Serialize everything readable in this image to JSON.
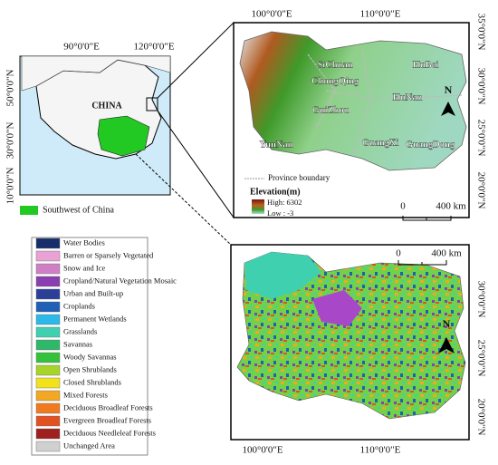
{
  "inset_map": {
    "lon_labels": [
      "90°0'0\"E",
      "120°0'0\"E"
    ],
    "lat_labels": [
      "50°0'0\"N",
      "30°0'0\"N",
      "10°0'0\"N"
    ],
    "country_label": "CHINA",
    "legend_label": "Southwest of China",
    "region_color": "#22c922"
  },
  "elevation_map": {
    "lon_labels": [
      "100°0'0\"E",
      "110°0'0\"E"
    ],
    "lat_labels": [
      "35°0'0\"N",
      "30°0'0\"N",
      "25°0'0\"N",
      "20°0'0\"N"
    ],
    "provinces": [
      "SiChuan",
      "ChongQing",
      "HuBei",
      "HuNan",
      "GuiZhou",
      "YunNan",
      "GuangXi",
      "GuangDong"
    ],
    "boundary_legend": "Province boundary",
    "elevation_title": "Elevation(m)",
    "high_label": "High: 6302",
    "low_label": "Low : -3",
    "scale_labels": [
      "0",
      "400 km"
    ],
    "north_label": "N"
  },
  "land_cover_map": {
    "lon_labels": [
      "100°0'0\"E",
      "110°0'0\"E"
    ],
    "lat_labels": [
      "30°0'0\"N",
      "25°0'0\"N",
      "20°0'0\"N"
    ],
    "scale_labels": [
      "0",
      "400 km"
    ],
    "north_label": "N"
  },
  "land_cover_legend": [
    {
      "label": "Water Bodies",
      "color": "#172e6a"
    },
    {
      "label": "Barren or Sparsely Vegetated",
      "color": "#e8a2d4"
    },
    {
      "label": "Snow and Ice",
      "color": "#d07fc6"
    },
    {
      "label": "Cropland/Natural Vegetation Mosaic",
      "color": "#8a3fb0"
    },
    {
      "label": "Urban and Built-up",
      "color": "#2b3f98"
    },
    {
      "label": "Croplands",
      "color": "#1f60b5"
    },
    {
      "label": "Permanent Wetlands",
      "color": "#2cb9e8"
    },
    {
      "label": "Grasslands",
      "color": "#3fd0b0"
    },
    {
      "label": "Savannas",
      "color": "#2fb86a"
    },
    {
      "label": "Woody Savannas",
      "color": "#34c23c"
    },
    {
      "label": "Open Shrublands",
      "color": "#a8d42a"
    },
    {
      "label": "Closed Shrublands",
      "color": "#f2e21e"
    },
    {
      "label": "Mixed Forests",
      "color": "#f2a820"
    },
    {
      "label": "Deciduous Broadleaf Forests",
      "color": "#f07a20"
    },
    {
      "label": "Evergreen Broadleaf Forests",
      "color": "#e05222"
    },
    {
      "label": "Deciduous Needleleaf Forests",
      "color": "#a01f1f"
    },
    {
      "label": "Unchanged Area",
      "color": "#d0d0d0"
    }
  ]
}
